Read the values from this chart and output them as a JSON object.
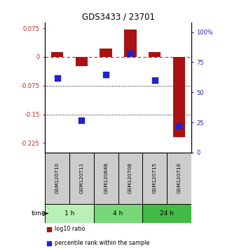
{
  "title": "GDS3433 / 23701",
  "samples": [
    "GSM120710",
    "GSM120711",
    "GSM120648",
    "GSM120708",
    "GSM120715",
    "GSM120716"
  ],
  "log10_ratio": [
    0.013,
    -0.025,
    0.022,
    0.072,
    0.012,
    -0.21
  ],
  "percentile_rank": [
    62,
    27,
    65,
    82,
    60,
    22
  ],
  "groups": [
    {
      "label": "1 h",
      "indices": [
        0,
        1
      ],
      "color": "#b8f0b8"
    },
    {
      "label": "4 h",
      "indices": [
        2,
        3
      ],
      "color": "#78d878"
    },
    {
      "label": "24 h",
      "indices": [
        4,
        5
      ],
      "color": "#44bb44"
    }
  ],
  "ylim_left": [
    -0.25,
    0.09
  ],
  "ylim_right": [
    0,
    108
  ],
  "yticks_left": [
    0.075,
    0.0,
    -0.075,
    -0.15,
    -0.225
  ],
  "ytick_labels_left": [
    "0.075",
    "0",
    "-0.075",
    "-0.15",
    "-0.225"
  ],
  "yticks_right": [
    100,
    75,
    50,
    25,
    0
  ],
  "ytick_labels_right": [
    "100%",
    "75",
    "50",
    "25",
    "0"
  ],
  "bar_color": "#aa1111",
  "dot_color": "#2222cc",
  "bar_width": 0.5,
  "background_color": "#ffffff",
  "plot_bg": "#ffffff",
  "header_bg": "#cccccc",
  "time_label": "time",
  "legend_items": [
    {
      "color": "#aa1111",
      "label": "log10 ratio"
    },
    {
      "color": "#2222cc",
      "label": "percentile rank within the sample"
    }
  ]
}
